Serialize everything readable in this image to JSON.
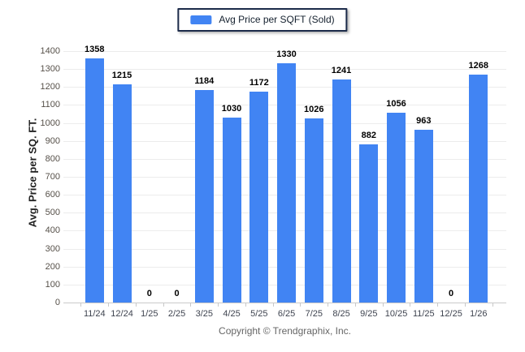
{
  "legend": {
    "label": "Avg Price per SQFT (Sold)",
    "swatch_color": "#4184F3"
  },
  "footer": {
    "copyright": "Copyright © Trendgraphix, Inc."
  },
  "chart_data": {
    "type": "bar",
    "title": "Avg Price per SQFT (Sold)",
    "xlabel": "",
    "ylabel": "Avg. Price per SQ. FT.",
    "categories": [
      "11/24",
      "12/24",
      "1/25",
      "2/25",
      "3/25",
      "4/25",
      "5/25",
      "6/25",
      "7/25",
      "8/25",
      "9/25",
      "10/25",
      "11/25",
      "12/25",
      "1/26"
    ],
    "values": [
      1358,
      1215,
      0,
      0,
      1184,
      1030,
      1172,
      1330,
      1026,
      1241,
      882,
      1056,
      963,
      0,
      1268
    ],
    "ylim": [
      0,
      1400
    ],
    "ytick_step": 100,
    "grid": true,
    "legend_position": "top-center",
    "bar_color": "#4184F3",
    "gridline_color": "#ececec",
    "axis_line_color": "#c9c9c9",
    "value_labels_shown": true
  }
}
